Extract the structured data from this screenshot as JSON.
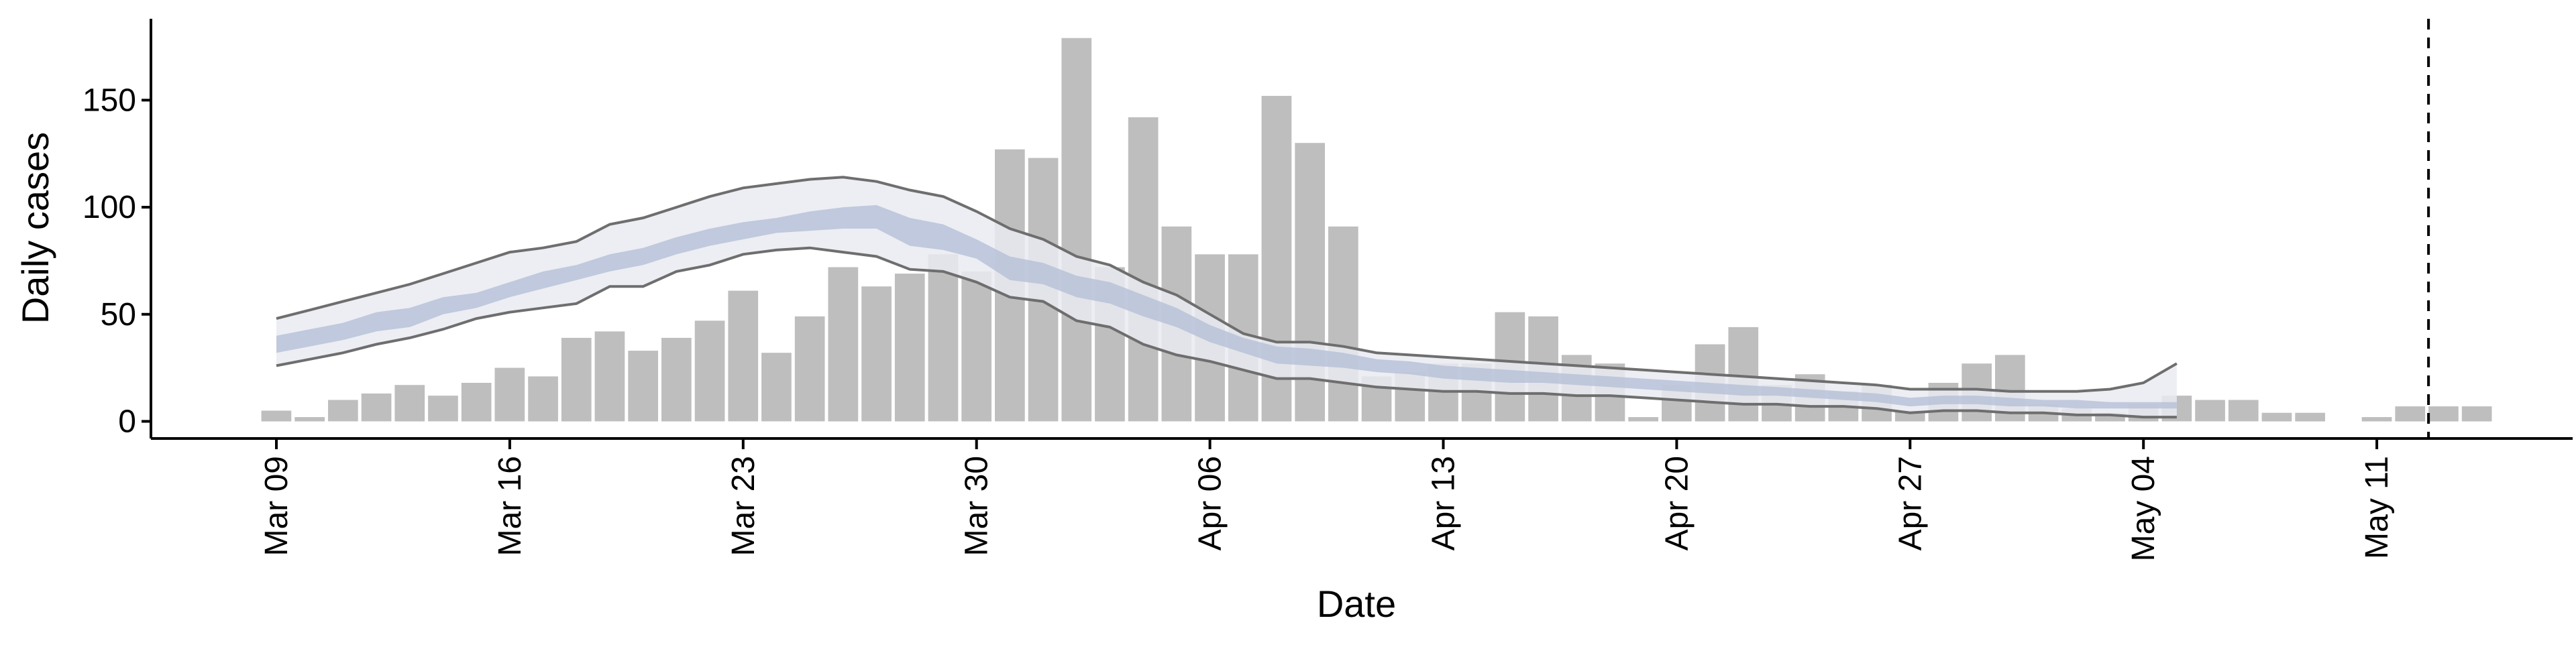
{
  "chart_data": {
    "type": "bar",
    "title": "",
    "xlabel": "Date",
    "ylabel": "Daily cases",
    "ylim": [
      -8,
      188
    ],
    "yticks": [
      0,
      50,
      100,
      150
    ],
    "x_start": "Mar 08",
    "x_end": "May 17",
    "categories": [
      "Mar 09",
      "Mar 10",
      "Mar 11",
      "Mar 12",
      "Mar 13",
      "Mar 14",
      "Mar 15",
      "Mar 16",
      "Mar 17",
      "Mar 18",
      "Mar 19",
      "Mar 20",
      "Mar 21",
      "Mar 22",
      "Mar 23",
      "Mar 24",
      "Mar 25",
      "Mar 26",
      "Mar 27",
      "Mar 28",
      "Mar 29",
      "Mar 30",
      "Mar 31",
      "Apr 01",
      "Apr 02",
      "Apr 03",
      "Apr 04",
      "Apr 05",
      "Apr 06",
      "Apr 07",
      "Apr 08",
      "Apr 09",
      "Apr 10",
      "Apr 11",
      "Apr 12",
      "Apr 13",
      "Apr 14",
      "Apr 15",
      "Apr 16",
      "Apr 17",
      "Apr 18",
      "Apr 19",
      "Apr 20",
      "Apr 21",
      "Apr 22",
      "Apr 23",
      "Apr 24",
      "Apr 25",
      "Apr 26",
      "Apr 27",
      "Apr 28",
      "Apr 29",
      "Apr 30",
      "May 01",
      "May 02",
      "May 03",
      "May 04",
      "May 05",
      "May 06",
      "May 07",
      "May 08",
      "May 09",
      "May 10",
      "May 11",
      "May 12",
      "May 13",
      "May 14"
    ],
    "xticks": [
      {
        "date": "Mar 09",
        "label": "Mar 09"
      },
      {
        "date": "Mar 16",
        "label": "Mar 16"
      },
      {
        "date": "Mar 23",
        "label": "Mar 23"
      },
      {
        "date": "Mar 30",
        "label": "Mar 30"
      },
      {
        "date": "Apr 06",
        "label": "Apr 06"
      },
      {
        "date": "Apr 13",
        "label": "Apr 13"
      },
      {
        "date": "Apr 20",
        "label": "Apr 20"
      },
      {
        "date": "Apr 27",
        "label": "Apr 27"
      },
      {
        "date": "May 04",
        "label": "May 04"
      },
      {
        "date": "May 11",
        "label": "May 11"
      }
    ],
    "series": [
      {
        "type": "bar",
        "values": [
          5,
          2,
          10,
          13,
          17,
          12,
          18,
          25,
          21,
          39,
          42,
          33,
          39,
          47,
          61,
          32,
          49,
          72,
          63,
          69,
          78,
          70,
          127,
          123,
          179,
          72,
          142,
          91,
          78,
          78,
          152,
          130,
          91,
          21,
          23,
          27,
          27,
          51,
          49,
          31,
          27,
          2,
          17,
          36,
          44,
          17,
          22,
          14,
          17,
          5,
          18,
          27,
          31,
          8,
          6,
          4,
          8,
          12,
          10,
          10,
          4,
          4,
          0,
          2,
          7,
          7,
          7
        ],
        "color": "#bebebe"
      },
      {
        "type": "band",
        "dates": [
          "Mar 09",
          "Mar 10",
          "Mar 11",
          "Mar 12",
          "Mar 13",
          "Mar 14",
          "Mar 15",
          "Mar 16",
          "Mar 17",
          "Mar 18",
          "Mar 19",
          "Mar 20",
          "Mar 21",
          "Mar 22",
          "Mar 23",
          "Mar 24",
          "Mar 25",
          "Mar 26",
          "Mar 27",
          "Mar 28",
          "Mar 29",
          "Mar 30",
          "Mar 31",
          "Apr 01",
          "Apr 02",
          "Apr 03",
          "Apr 04",
          "Apr 05",
          "Apr 06",
          "Apr 07",
          "Apr 08",
          "Apr 09",
          "Apr 10",
          "Apr 11",
          "Apr 12",
          "Apr 13",
          "Apr 14",
          "Apr 15",
          "Apr 16",
          "Apr 17",
          "Apr 18",
          "Apr 19",
          "Apr 20",
          "Apr 21",
          "Apr 22",
          "Apr 23",
          "Apr 24",
          "Apr 25",
          "Apr 26",
          "Apr 27",
          "Apr 28",
          "Apr 29",
          "Apr 30",
          "May 01",
          "May 02",
          "May 03",
          "May 04",
          "May 05"
        ],
        "lower": [
          26,
          29,
          32,
          36,
          39,
          43,
          48,
          51,
          53,
          55,
          63,
          63,
          70,
          73,
          78,
          80,
          81,
          79,
          77,
          71,
          70,
          65,
          58,
          56,
          47,
          44,
          36,
          31,
          28,
          24,
          20,
          20,
          18,
          16,
          15,
          14,
          14,
          13,
          13,
          12,
          12,
          11,
          10,
          9,
          8,
          8,
          7,
          7,
          6,
          4,
          5,
          5,
          4,
          4,
          3,
          3,
          2,
          2
        ],
        "upper": [
          48,
          52,
          56,
          60,
          64,
          69,
          74,
          79,
          81,
          84,
          92,
          95,
          100,
          105,
          109,
          111,
          113,
          114,
          112,
          108,
          105,
          98,
          90,
          85,
          77,
          73,
          65,
          59,
          50,
          41,
          37,
          37,
          35,
          32,
          31,
          30,
          29,
          28,
          27,
          26,
          25,
          24,
          23,
          22,
          21,
          20,
          19,
          18,
          17,
          15,
          15,
          15,
          14,
          14,
          14,
          15,
          18,
          27
        ],
        "fill": "#e9ebf1",
        "edge_color": "#6e6e6e"
      },
      {
        "type": "band",
        "dates": [
          "Mar 09",
          "Mar 10",
          "Mar 11",
          "Mar 12",
          "Mar 13",
          "Mar 14",
          "Mar 15",
          "Mar 16",
          "Mar 17",
          "Mar 18",
          "Mar 19",
          "Mar 20",
          "Mar 21",
          "Mar 22",
          "Mar 23",
          "Mar 24",
          "Mar 25",
          "Mar 26",
          "Mar 27",
          "Mar 28",
          "Mar 29",
          "Mar 30",
          "Mar 31",
          "Apr 01",
          "Apr 02",
          "Apr 03",
          "Apr 04",
          "Apr 05",
          "Apr 06",
          "Apr 07",
          "Apr 08",
          "Apr 09",
          "Apr 10",
          "Apr 11",
          "Apr 12",
          "Apr 13",
          "Apr 14",
          "Apr 15",
          "Apr 16",
          "Apr 17",
          "Apr 18",
          "Apr 19",
          "Apr 20",
          "Apr 21",
          "Apr 22",
          "Apr 23",
          "Apr 24",
          "Apr 25",
          "Apr 26",
          "Apr 27",
          "Apr 28",
          "Apr 29",
          "Apr 30",
          "May 01",
          "May 02",
          "May 03",
          "May 04",
          "May 05"
        ],
        "lower": [
          32,
          35,
          38,
          42,
          44,
          50,
          53,
          58,
          62,
          66,
          70,
          73,
          78,
          82,
          85,
          88,
          89,
          90,
          90,
          82,
          80,
          76,
          66,
          64,
          58,
          55,
          49,
          44,
          37,
          32,
          27,
          26,
          25,
          23,
          22,
          20,
          19,
          18,
          18,
          17,
          16,
          15,
          14,
          13,
          12,
          12,
          11,
          10,
          9,
          7,
          8,
          8,
          7,
          7,
          6,
          6,
          6,
          6
        ],
        "upper": [
          40,
          43,
          46,
          51,
          53,
          58,
          60,
          65,
          70,
          73,
          78,
          81,
          86,
          90,
          93,
          95,
          98,
          100,
          101,
          95,
          92,
          85,
          77,
          74,
          68,
          65,
          59,
          53,
          45,
          39,
          35,
          34,
          32,
          29,
          28,
          26,
          25,
          24,
          23,
          22,
          21,
          20,
          19,
          18,
          17,
          16,
          15,
          14,
          13,
          11,
          12,
          12,
          11,
          10,
          10,
          9,
          9,
          9
        ],
        "fill": "#b9c2d8"
      }
    ],
    "vline": {
      "date": "May 13",
      "style": "dashed",
      "color": "#000000"
    },
    "grid": false,
    "legend": "none"
  }
}
